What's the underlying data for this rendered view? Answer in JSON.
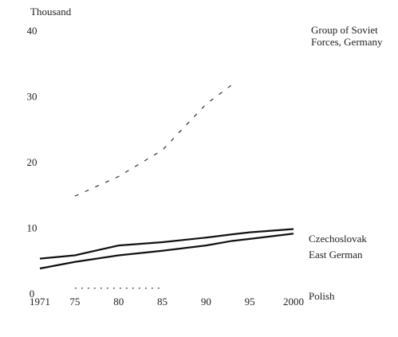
{
  "chart_data": {
    "type": "line",
    "y_axis_label": "Thousand",
    "x": [
      1971,
      1975,
      1980,
      1985,
      1990,
      1993,
      1995,
      2000
    ],
    "series": [
      {
        "name": "Group of Soviet Forces, Germany",
        "color": "#333333",
        "style": "dashed",
        "values": [
          null,
          15,
          18,
          22,
          29,
          32,
          null,
          null
        ]
      },
      {
        "name": "Czechoslovak",
        "color": "#111111",
        "style": "solid",
        "values": [
          5.5,
          6,
          7.5,
          8,
          8.7,
          9.2,
          9.5,
          10
        ]
      },
      {
        "name": "East German",
        "color": "#111111",
        "style": "solid",
        "values": [
          4,
          5,
          6,
          6.7,
          7.5,
          8.2,
          8.5,
          9.3
        ]
      },
      {
        "name": "Polish",
        "color": "#444444",
        "style": "dotted",
        "values": [
          null,
          1,
          1,
          1,
          null,
          null,
          null,
          null
        ]
      }
    ],
    "xlim": [
      1971,
      2000
    ],
    "xticks": [
      1971,
      {
        "value": 1975,
        "label": "75"
      },
      {
        "value": 1980,
        "label": "80"
      },
      {
        "value": 1985,
        "label": "85"
      },
      {
        "value": 1990,
        "label": "90"
      },
      {
        "value": 1995,
        "label": "95"
      },
      2000
    ],
    "ylim": [
      0,
      40
    ],
    "yticks": [
      0,
      10,
      20,
      30,
      40
    ],
    "grid": false
  }
}
